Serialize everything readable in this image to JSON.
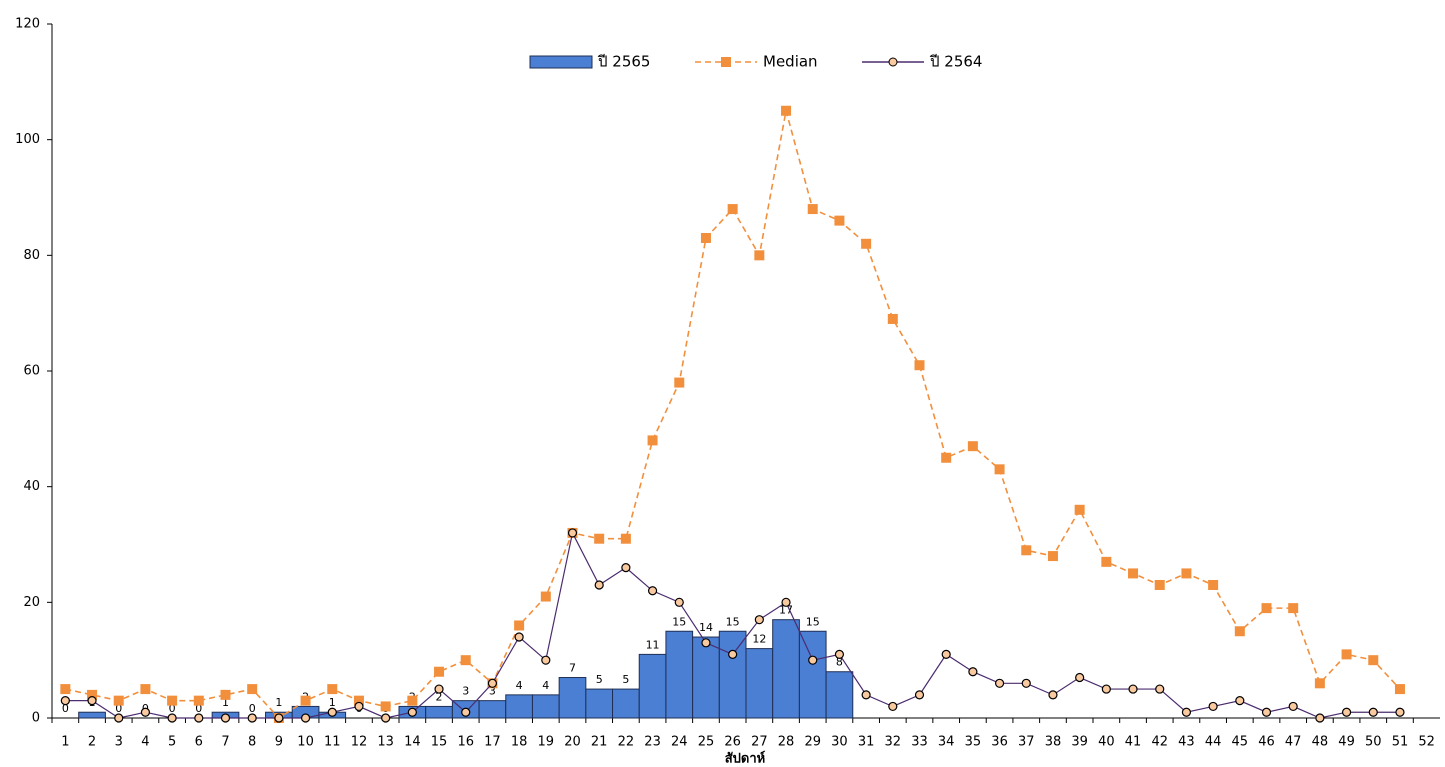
{
  "chart_data": {
    "type": "combo",
    "x_label": "สัปดาห์",
    "categories": [
      "1",
      "2",
      "3",
      "4",
      "5",
      "6",
      "7",
      "8",
      "9",
      "10",
      "11",
      "12",
      "13",
      "14",
      "15",
      "16",
      "17",
      "18",
      "19",
      "20",
      "21",
      "22",
      "23",
      "24",
      "25",
      "26",
      "27",
      "28",
      "29",
      "30",
      "31",
      "32",
      "33",
      "34",
      "35",
      "36",
      "37",
      "38",
      "39",
      "40",
      "41",
      "42",
      "43",
      "44",
      "45",
      "46",
      "47",
      "48",
      "49",
      "50",
      "51",
      "52"
    ],
    "series": [
      {
        "name": "ปี 2565",
        "type": "bar",
        "color": "#4a7fd4",
        "data_labels": true,
        "values": [
          0,
          1,
          0,
          0,
          0,
          0,
          1,
          0,
          1,
          2,
          1,
          0,
          0,
          2,
          2,
          3,
          3,
          4,
          4,
          7,
          5,
          5,
          11,
          15,
          14,
          15,
          12,
          17,
          15,
          8,
          null,
          null,
          null,
          null,
          null,
          null,
          null,
          null,
          null,
          null,
          null,
          null,
          null,
          null,
          null,
          null,
          null,
          null,
          null,
          null,
          null,
          null
        ]
      },
      {
        "name": "Median",
        "type": "line",
        "color": "#f28f3c",
        "dashed": true,
        "marker": "square",
        "values": [
          5,
          4,
          3,
          5,
          3,
          3,
          4,
          5,
          0,
          3,
          5,
          3,
          2,
          3,
          8,
          10,
          6,
          16,
          21,
          32,
          31,
          31,
          48,
          58,
          83,
          88,
          80,
          105,
          88,
          86,
          82,
          69,
          61,
          45,
          47,
          43,
          29,
          28,
          36,
          27,
          25,
          23,
          25,
          23,
          15,
          19,
          19,
          6,
          11,
          10,
          5,
          null
        ]
      },
      {
        "name": "ปี 2564",
        "type": "line",
        "color": "#4b2c6f",
        "dashed": false,
        "marker": "circle",
        "values": [
          3,
          3,
          0,
          1,
          0,
          0,
          0,
          0,
          0,
          0,
          1,
          2,
          0,
          1,
          5,
          1,
          6,
          14,
          10,
          32,
          23,
          26,
          22,
          20,
          13,
          11,
          17,
          20,
          10,
          11,
          4,
          2,
          4,
          11,
          8,
          6,
          6,
          4,
          7,
          5,
          5,
          5,
          1,
          2,
          3,
          1,
          2,
          0,
          1,
          1,
          1,
          null
        ]
      }
    ],
    "ylim": [
      0,
      120
    ],
    "yticks": [
      0,
      20,
      40,
      60,
      80,
      100,
      120
    ],
    "grid": false
  }
}
